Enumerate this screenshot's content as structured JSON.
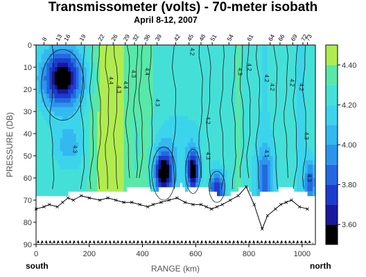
{
  "chart_data": {
    "type": "heatmap",
    "title": "Transmissometer (volts) - 70-meter isobath",
    "subtitle": "April 8-12, 2007",
    "xlabel": "RANGE (km)",
    "ylabel": "PRESSURE (DB)",
    "xlim": [
      0,
      1050
    ],
    "ylim": [
      90,
      0
    ],
    "x_ticks": [
      "0",
      "200",
      "400",
      "600",
      "800",
      "1000"
    ],
    "y_ticks": [
      "0",
      "10",
      "20",
      "30",
      "40",
      "50",
      "60",
      "70",
      "80",
      "90"
    ],
    "left_edge_label": "south",
    "right_edge_label": "north",
    "colorbar": {
      "ticks": [
        "4.40",
        "4.20",
        "4.00",
        "3.80",
        "3.60"
      ],
      "levels": [
        3.5,
        3.6,
        3.7,
        3.8,
        3.9,
        4.0,
        4.1,
        4.2,
        4.3,
        4.4,
        4.5
      ],
      "colors": [
        "#000000",
        "#1818a0",
        "#1c3cd0",
        "#2468e0",
        "#2c94ec",
        "#34b8f0",
        "#3cd4ec",
        "#44e0d8",
        "#58e8a8",
        "#b0ec50"
      ]
    },
    "contour_labels": [
      {
        "x": 140,
        "y": 47,
        "text": "4.3"
      },
      {
        "x": 275,
        "y": 16,
        "text": "4.4"
      },
      {
        "x": 305,
        "y": 20,
        "text": "4.3"
      },
      {
        "x": 330,
        "y": 18,
        "text": "4.4"
      },
      {
        "x": 360,
        "y": 13,
        "text": "4.3"
      },
      {
        "x": 410,
        "y": 12,
        "text": "4.4"
      },
      {
        "x": 450,
        "y": 26,
        "text": "4.3"
      },
      {
        "x": 580,
        "y": 3,
        "text": "4.2"
      },
      {
        "x": 640,
        "y": 34,
        "text": "4.2"
      },
      {
        "x": 640,
        "y": 50,
        "text": "4.3"
      },
      {
        "x": 760,
        "y": 12,
        "text": "4.3"
      },
      {
        "x": 795,
        "y": 10,
        "text": "4.2"
      },
      {
        "x": 860,
        "y": 15,
        "text": "4.2"
      },
      {
        "x": 880,
        "y": 19,
        "text": "4.2"
      },
      {
        "x": 860,
        "y": 49,
        "text": "4.1"
      },
      {
        "x": 955,
        "y": 17,
        "text": "4.2"
      },
      {
        "x": 990,
        "y": 19,
        "text": "4.2"
      },
      {
        "x": 1010,
        "y": 41,
        "text": "4.3"
      },
      {
        "x": 1020,
        "y": 60,
        "text": "4.3"
      }
    ],
    "stations": [
      {
        "label": "8",
        "x": 30
      },
      {
        "label": "13",
        "x": 80
      },
      {
        "label": "16",
        "x": 112
      },
      {
        "label": "19",
        "x": 170
      },
      {
        "label": "22",
        "x": 240
      },
      {
        "label": "26",
        "x": 290
      },
      {
        "label": "29",
        "x": 335
      },
      {
        "label": "32",
        "x": 370
      },
      {
        "label": "36",
        "x": 412
      },
      {
        "label": "39",
        "x": 455
      },
      {
        "label": "42",
        "x": 525
      },
      {
        "label": "45",
        "x": 575
      },
      {
        "label": "48",
        "x": 620
      },
      {
        "label": "51",
        "x": 662
      },
      {
        "label": "54",
        "x": 725
      },
      {
        "label": "61",
        "x": 800
      },
      {
        "label": "64",
        "x": 880
      },
      {
        "label": "66",
        "x": 917
      },
      {
        "label": "69",
        "x": 965
      },
      {
        "label": "72",
        "x": 1003
      },
      {
        "label": "73",
        "x": 1020
      }
    ],
    "bottom_depth": {
      "x": [
        0,
        30,
        50,
        80,
        100,
        120,
        140,
        170,
        200,
        240,
        270,
        300,
        330,
        360,
        390,
        420,
        440,
        470,
        500,
        530,
        560,
        590,
        620,
        640,
        660,
        680,
        700,
        730,
        760,
        790,
        820,
        850,
        870,
        900,
        920,
        940,
        960,
        990,
        1020
      ],
      "y": [
        74,
        73,
        72,
        73,
        71,
        69,
        70,
        68,
        69,
        70,
        69,
        70,
        71,
        71,
        72,
        73,
        72,
        71,
        70,
        69,
        71,
        72,
        72,
        73,
        74,
        73,
        72,
        70,
        68,
        64,
        72,
        83,
        77,
        74,
        72,
        71,
        70,
        73,
        74
      ]
    },
    "data_lower_edge": {
      "x": [
        0,
        40,
        80,
        120,
        160,
        200,
        240,
        290,
        340,
        390,
        430,
        460,
        490,
        520,
        545,
        560,
        580,
        610,
        650,
        680,
        720,
        760,
        800,
        820,
        850,
        880,
        910,
        940,
        980,
        1020
      ],
      "y": [
        67,
        68,
        68,
        67,
        66,
        66,
        65,
        65,
        65,
        64,
        65,
        65,
        63,
        65,
        62,
        66,
        64,
        64,
        65,
        67,
        68,
        65,
        64,
        69,
        65,
        66,
        65,
        63,
        66,
        67
      ]
    }
  }
}
